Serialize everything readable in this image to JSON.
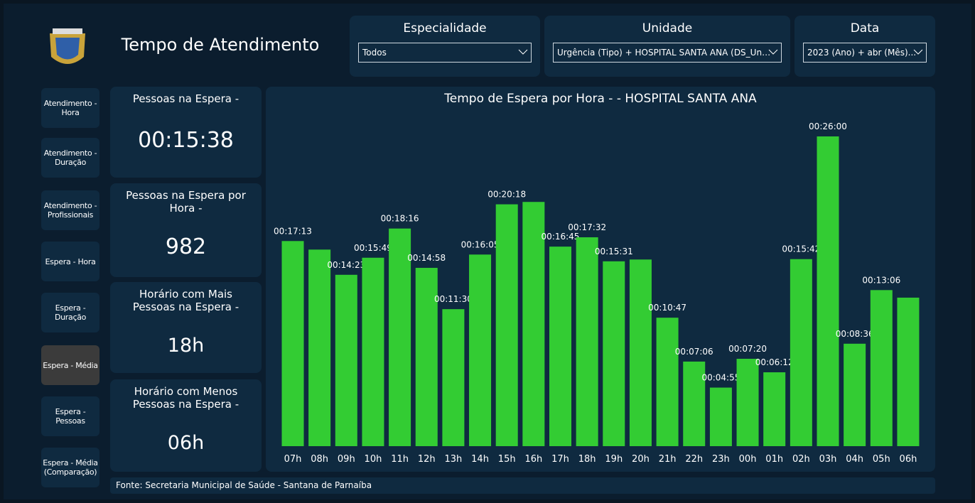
{
  "header": {
    "title": "Tempo de Atendimento"
  },
  "filters": [
    {
      "label": "Especialidade",
      "value": "Todos"
    },
    {
      "label": "Unidade",
      "value": "Urgência (Tipo) + HOSPITAL SANTA ANA (DS_Un…"
    },
    {
      "label": "Data",
      "value": "2023 (Ano) + abr (Mês)..."
    }
  ],
  "nav": [
    "Atendimento - Hora",
    "Atendimento - Duração",
    "Atendimento - Profissionais",
    "Espera - Hora",
    "Espera - Duração",
    "Espera - Média",
    "Espera - Pessoas",
    "Espera - Média (Comparação)"
  ],
  "cards": [
    {
      "title": "Pessoas na Espera -",
      "value": "00:15:38"
    },
    {
      "title": "Pessoas na Espera por Hora -",
      "value": 982
    },
    {
      "title": "Horário com Mais Pessoas na Espera -",
      "value": "18h"
    },
    {
      "title": "Horário com Menos Pessoas na Espera -",
      "value": "06h"
    }
  ],
  "footer": "Fonte: Secretaria Municipal de Saúde - Santana de Parnaíba",
  "chart_data": {
    "type": "bar",
    "title": "Tempo de Espera por Hora - - HOSPITAL SANTA ANA",
    "color": "#33cc33",
    "categories": [
      "07h",
      "08h",
      "09h",
      "10h",
      "11h",
      "12h",
      "13h",
      "14h",
      "15h",
      "16h",
      "17h",
      "18h",
      "19h",
      "20h",
      "21h",
      "22h",
      "23h",
      "00h",
      "01h",
      "02h",
      "03h",
      "04h",
      "05h",
      "06h"
    ],
    "values": [
      1033,
      990,
      863,
      949,
      1096,
      898,
      690,
      965,
      1218,
      1230,
      1005,
      1052,
      931,
      940,
      647,
      426,
      295,
      440,
      372,
      942,
      1560,
      516,
      786,
      748
    ],
    "value_labels": [
      "00:17:13",
      null,
      "00:14:23",
      "00:15:49",
      "00:18:16",
      "00:14:58",
      "00:11:30",
      "00:16:05",
      "00:20:18",
      null,
      "00:16:45",
      "00:17:32",
      "00:15:31",
      null,
      "00:10:47",
      "00:07:06",
      "00:04:55",
      "00:07:20",
      "00:06:12",
      "00:15:42",
      "00:26:00",
      "00:08:36",
      "00:13:06",
      null
    ]
  }
}
